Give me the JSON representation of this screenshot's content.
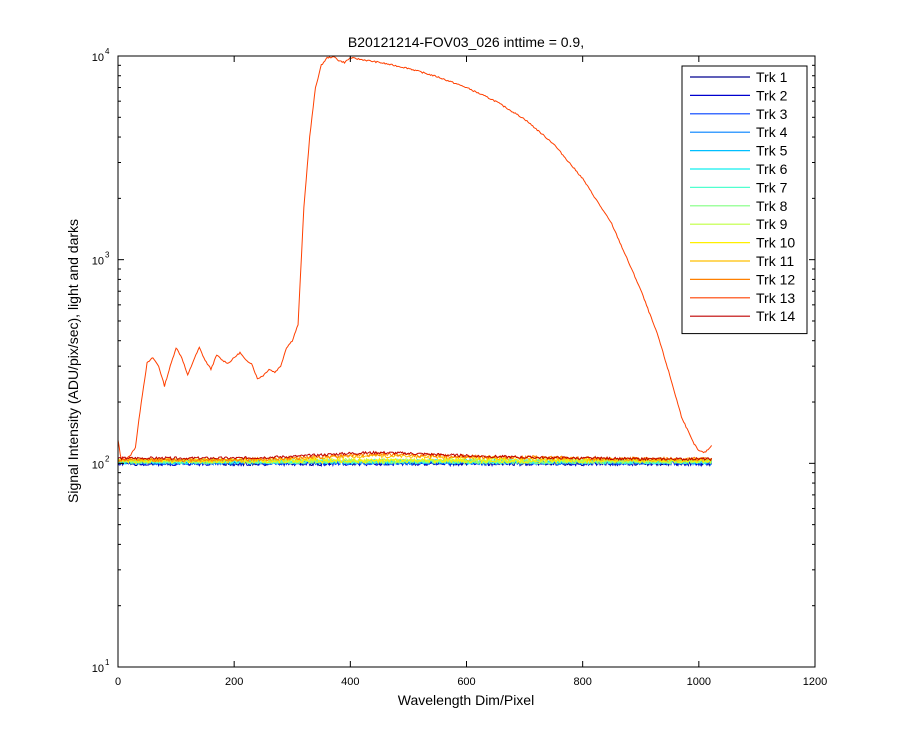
{
  "chart_data": {
    "type": "line",
    "title": "B20121214-FOV03_026 inttime = 0.9,",
    "xlabel": "Wavelength Dim/Pixel",
    "ylabel": "Signal Intensity (ADU/pix/sec), light and darks",
    "xlim": [
      0,
      1200
    ],
    "ylim": [
      10,
      10000
    ],
    "yscale": "log",
    "grid": false,
    "legend_position": "top-right",
    "x_ticks": [
      0,
      200,
      400,
      600,
      800,
      1000,
      1200
    ],
    "x_tick_labels": [
      "0",
      "200",
      "400",
      "600",
      "800",
      "1000",
      "1200"
    ],
    "y_ticks": [
      10,
      100,
      1000,
      10000
    ],
    "y_tick_labels": [
      {
        "base": "10",
        "exp": "1"
      },
      {
        "base": "10",
        "exp": "2"
      },
      {
        "base": "10",
        "exp": "3"
      },
      {
        "base": "10",
        "exp": "4"
      }
    ],
    "series": [
      {
        "name": "Trk 1",
        "color": "#00008F",
        "x": [
          0,
          1023
        ],
        "y": [
          100,
          100
        ],
        "noise": 0.025,
        "seed": 1
      },
      {
        "name": "Trk 2",
        "color": "#0000CF",
        "x": [
          0,
          1023
        ],
        "y": [
          100,
          100
        ],
        "noise": 0.025,
        "seed": 2
      },
      {
        "name": "Trk 3",
        "color": "#0040FF",
        "x": [
          0,
          1023
        ],
        "y": [
          101,
          101
        ],
        "noise": 0.025,
        "seed": 3
      },
      {
        "name": "Trk 4",
        "color": "#0080FF",
        "x": [
          0,
          1023
        ],
        "y": [
          101,
          101
        ],
        "noise": 0.025,
        "seed": 4
      },
      {
        "name": "Trk 5",
        "color": "#00BFFF",
        "x": [
          0,
          1023
        ],
        "y": [
          102,
          102
        ],
        "noise": 0.025,
        "seed": 5
      },
      {
        "name": "Trk 6",
        "color": "#10EFEF",
        "x": [
          0,
          1023
        ],
        "y": [
          102,
          102
        ],
        "noise": 0.025,
        "seed": 6
      },
      {
        "name": "Trk 7",
        "color": "#50FFCF",
        "x": [
          0,
          1023
        ],
        "y": [
          102,
          102
        ],
        "noise": 0.025,
        "seed": 7
      },
      {
        "name": "Trk 8",
        "color": "#80FF80",
        "x": [
          0,
          1023
        ],
        "y": [
          102,
          102
        ],
        "noise": 0.025,
        "seed": 8
      },
      {
        "name": "Trk 9",
        "color": "#BFFF40",
        "x": [
          0,
          1023
        ],
        "y": [
          103,
          103
        ],
        "noise": 0.025,
        "seed": 9
      },
      {
        "name": "Trk 10",
        "color": "#FFEF00",
        "x": [
          0,
          1023
        ],
        "y": [
          103,
          103
        ],
        "noise": 0.025,
        "seed": 10
      },
      {
        "name": "Trk 11",
        "color": "#FFBF00",
        "x": [
          0,
          200,
          300,
          350,
          400,
          450,
          500,
          600,
          700,
          800,
          900,
          1023
        ],
        "y": [
          104,
          104,
          105,
          107,
          108,
          109,
          108,
          107,
          106,
          105,
          104,
          104
        ],
        "noise": 0.02,
        "seed": 11
      },
      {
        "name": "Trk 12",
        "color": "#FF8000",
        "x": [
          0,
          200,
          300,
          350,
          400,
          450,
          500,
          600,
          700,
          800,
          900,
          1023
        ],
        "y": [
          104,
          104,
          106,
          108,
          110,
          111,
          110,
          108,
          107,
          106,
          105,
          105
        ],
        "noise": 0.02,
        "seed": 12
      },
      {
        "name": "Trk 13",
        "color": "#FF4000",
        "x": [
          0,
          2,
          5,
          10,
          20,
          30,
          40,
          50,
          60,
          70,
          80,
          90,
          100,
          110,
          120,
          130,
          140,
          150,
          160,
          170,
          180,
          190,
          200,
          210,
          220,
          230,
          240,
          250,
          260,
          270,
          280,
          290,
          300,
          310,
          320,
          330,
          340,
          350,
          360,
          370,
          375,
          380,
          390,
          400,
          420,
          450,
          500,
          550,
          600,
          650,
          700,
          750,
          800,
          850,
          900,
          930,
          950,
          970,
          990,
          1000,
          1010,
          1020,
          1023
        ],
        "y": [
          130,
          120,
          105,
          105,
          108,
          120,
          200,
          310,
          330,
          300,
          240,
          300,
          370,
          330,
          270,
          320,
          370,
          320,
          290,
          340,
          320,
          310,
          330,
          350,
          320,
          310,
          260,
          270,
          290,
          280,
          300,
          370,
          400,
          480,
          1800,
          4000,
          7000,
          9000,
          9800,
          9900,
          9800,
          9500,
          9300,
          9800,
          9600,
          9300,
          8700,
          7900,
          7000,
          6000,
          4900,
          3700,
          2500,
          1500,
          710,
          420,
          270,
          170,
          127,
          115,
          113,
          120,
          125
        ],
        "noise": 0.008,
        "seed": 13
      },
      {
        "name": "Trk 14",
        "color": "#BF0000",
        "x": [
          0,
          100,
          200,
          300,
          350,
          400,
          450,
          500,
          600,
          700,
          800,
          900,
          1023
        ],
        "y": [
          106,
          106,
          106,
          108,
          110,
          112,
          113,
          112,
          109,
          107,
          106,
          105,
          105
        ],
        "noise": 0.015,
        "seed": 14
      }
    ]
  }
}
